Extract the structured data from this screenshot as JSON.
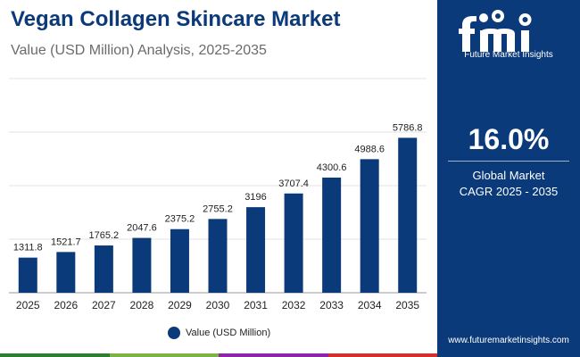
{
  "header": {
    "title": "Vegan Collagen Skincare Market",
    "subtitle": "Value (USD Million) Analysis, 2025-2035"
  },
  "chart_data": {
    "type": "bar",
    "title": "Vegan Collagen Skincare Market",
    "subtitle": "Value (USD Million) Analysis, 2025-2035",
    "xlabel": "",
    "ylabel": "",
    "categories": [
      "2025",
      "2026",
      "2027",
      "2028",
      "2029",
      "2030",
      "2031",
      "2032",
      "2033",
      "2034",
      "2035"
    ],
    "series": [
      {
        "name": "Value (USD Million)",
        "values": [
          1311.8,
          1521.7,
          1765.2,
          2047.6,
          2375.2,
          2755.2,
          3196,
          3707.4,
          4300.6,
          4988.6,
          5786.8
        ]
      }
    ],
    "value_labels": [
      "1311.8",
      "1521.7",
      "1765.2",
      "2047.6",
      "2375.2",
      "2755.2",
      "3196",
      "3707.4",
      "4300.6",
      "4988.6",
      "5786.8"
    ],
    "ylim": [
      0,
      8000
    ],
    "y_axis_visible": false,
    "grid": true,
    "legend_position": "bottom",
    "bar_color": "#0b3a7a"
  },
  "legend": {
    "label": "Value (USD Million)",
    "color": "#0b3a7a"
  },
  "sidebar": {
    "logo_text": "Future Market Insights",
    "cagr_value": "16.0%",
    "cagr_label_line1": "Global Market",
    "cagr_label_line2": "CAGR 2025 - 2035",
    "website": "www.futuremarketinsights.com",
    "background_color": "#0b3a7a"
  },
  "bottom_band_colors": [
    "#2e7d32",
    "#7cb342",
    "#8e24aa",
    "#d32f2f"
  ]
}
